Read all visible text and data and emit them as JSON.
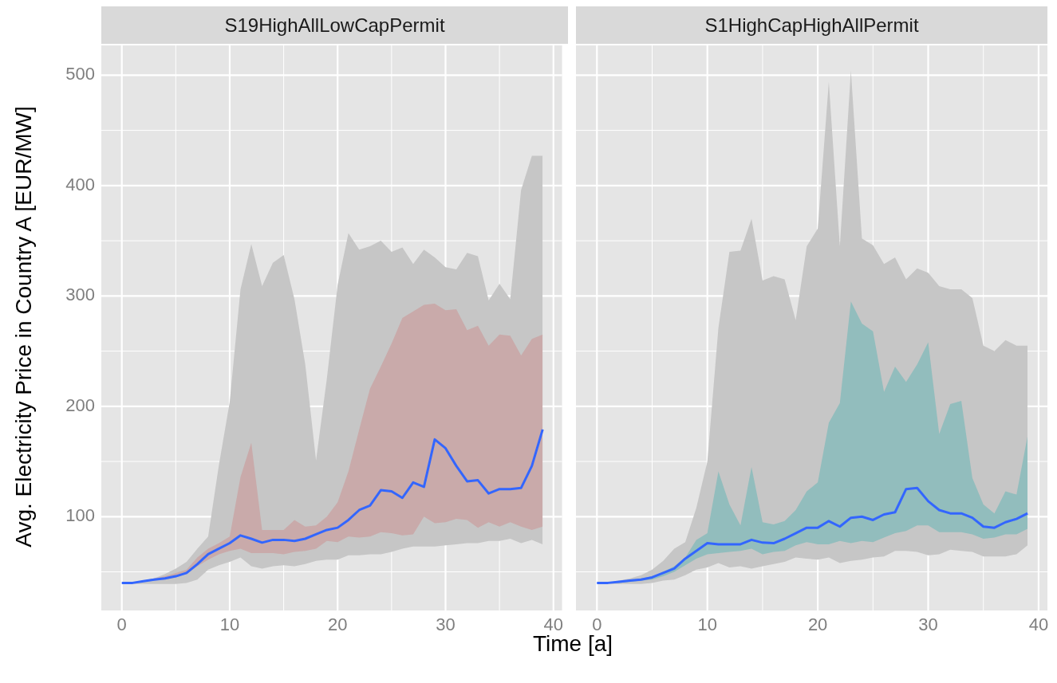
{
  "chart_data": [
    {
      "type": "line",
      "title": "S19HighAllLowCapPermit",
      "ylabel": "Avg. Electricity Price in Country A [EUR/MW]",
      "xlabel": "Time [a]",
      "x": [
        0,
        1,
        2,
        3,
        4,
        5,
        6,
        7,
        8,
        9,
        10,
        11,
        12,
        13,
        14,
        15,
        16,
        17,
        18,
        19,
        20,
        21,
        22,
        23,
        24,
        25,
        26,
        27,
        28,
        29,
        30,
        31,
        32,
        33,
        34,
        35,
        36,
        37,
        38,
        39
      ],
      "xlim": [
        -1.9,
        40.8
      ],
      "xticks": [
        0,
        {
          "value": 5,
          "label": null
        },
        10,
        {
          "value": 15,
          "label": null
        },
        20,
        {
          "value": 25,
          "label": null
        },
        30,
        {
          "value": 35,
          "label": null
        },
        40
      ],
      "ylim": [
        15,
        527
      ],
      "yticks": [
        {
          "value": 50,
          "label": null
        },
        100,
        {
          "value": 150,
          "label": null
        },
        200,
        {
          "value": 250,
          "label": null
        },
        300,
        {
          "value": 350,
          "label": null
        },
        400,
        {
          "value": 450,
          "label": null
        },
        500
      ],
      "grid": true,
      "series": [
        {
          "type": "area",
          "color": "#c6c6c6",
          "values": [
            null,
            null,
            null,
            null,
            null,
            null,
            null,
            null,
            null,
            null,
            null,
            null,
            null,
            null,
            null,
            null,
            null,
            null,
            null,
            null,
            null,
            null,
            null,
            null,
            null,
            null,
            null,
            null,
            null,
            null,
            null,
            null,
            null,
            null,
            null,
            null,
            null,
            null,
            null,
            null
          ],
          "lower": [
            40,
            39,
            39,
            39,
            39,
            39,
            40,
            43,
            52,
            56,
            59,
            63,
            55,
            53,
            55,
            56,
            55,
            57,
            60,
            61,
            61,
            65,
            65,
            66,
            66,
            68,
            71,
            73,
            73,
            73,
            74,
            75,
            76,
            76,
            78,
            78,
            80,
            76,
            79,
            75
          ],
          "upper": [
            40,
            40,
            42,
            44,
            48,
            53,
            59,
            71,
            82,
            147,
            204,
            306,
            347,
            309,
            330,
            337,
            297,
            238,
            151,
            225,
            310,
            357,
            342,
            345,
            350,
            340,
            344,
            329,
            342,
            335,
            326,
            324,
            339,
            336,
            296,
            311,
            297,
            396,
            427,
            427
          ]
        },
        {
          "type": "area",
          "color": "#c9aaaa",
          "values": [
            null,
            null,
            null,
            null,
            null,
            null,
            null,
            null,
            null,
            null,
            null,
            null,
            null,
            null,
            null,
            null,
            null,
            null,
            null,
            null,
            null,
            null,
            null,
            null,
            null,
            null,
            null,
            null,
            null,
            null,
            null,
            null,
            null,
            null,
            null,
            null,
            null,
            null,
            null,
            null
          ],
          "lower": [
            40,
            40,
            41,
            42,
            43,
            45,
            48,
            55,
            61,
            66,
            69,
            71,
            67,
            67,
            67,
            66,
            68,
            69,
            71,
            78,
            77,
            82,
            81,
            82,
            86,
            85,
            83,
            84,
            100,
            94,
            95,
            98,
            97,
            90,
            95,
            91,
            95,
            91,
            88,
            91
          ],
          "upper": [
            40,
            40,
            42,
            44,
            46,
            49,
            52,
            63,
            71,
            76,
            82,
            136,
            167,
            88,
            88,
            88,
            97,
            91,
            92,
            100,
            113,
            141,
            179,
            216,
            236,
            257,
            280,
            286,
            292,
            293,
            287,
            288,
            269,
            273,
            255,
            265,
            264,
            246,
            261,
            265
          ]
        },
        {
          "type": "line",
          "color": "#3366ff",
          "values": [
            40,
            40,
            41.5,
            43,
            44,
            46,
            49,
            57,
            66,
            71,
            76,
            83,
            80,
            76.5,
            79,
            79,
            78,
            80,
            84,
            88,
            90,
            97,
            106,
            110,
            124,
            123,
            117,
            131,
            127,
            170,
            162,
            146,
            132,
            133,
            121,
            125,
            125,
            126,
            146,
            179
          ]
        }
      ]
    },
    {
      "type": "line",
      "title": "S1HighCapHighAllPermit",
      "tick_labels": "x",
      "x": [
        0,
        1,
        2,
        3,
        4,
        5,
        6,
        7,
        8,
        9,
        10,
        11,
        12,
        13,
        14,
        15,
        16,
        17,
        18,
        19,
        20,
        21,
        22,
        23,
        24,
        25,
        26,
        27,
        28,
        29,
        30,
        31,
        32,
        33,
        34,
        35,
        36,
        37,
        38,
        39
      ],
      "xlim": [
        -1.9,
        40.8
      ],
      "xticks": [
        0,
        {
          "value": 5,
          "label": null
        },
        10,
        {
          "value": 15,
          "label": null
        },
        20,
        {
          "value": 25,
          "label": null
        },
        30,
        {
          "value": 35,
          "label": null
        },
        40
      ],
      "ylim": [
        15,
        527
      ],
      "yticks": [
        {
          "value": 50,
          "label": null
        },
        100,
        {
          "value": 150,
          "label": null
        },
        200,
        {
          "value": 250,
          "label": null
        },
        300,
        {
          "value": 350,
          "label": null
        },
        400,
        {
          "value": 450,
          "label": null
        },
        500
      ],
      "grid": true,
      "series": [
        {
          "type": "area",
          "color": "#c6c6c6",
          "values": [
            null,
            null,
            null,
            null,
            null,
            null,
            null,
            null,
            null,
            null,
            null,
            null,
            null,
            null,
            null,
            null,
            null,
            null,
            null,
            null,
            null,
            null,
            null,
            null,
            null,
            null,
            null,
            null,
            null,
            null,
            null,
            null,
            null,
            null,
            null,
            null,
            null,
            null,
            null,
            null
          ],
          "lower": [
            40,
            39,
            39,
            39,
            39,
            40,
            42,
            43,
            47,
            52,
            54,
            58,
            54,
            55,
            53,
            55,
            57,
            59,
            63,
            62,
            61,
            63,
            58,
            60,
            61,
            63,
            64,
            69,
            69,
            68,
            65,
            66,
            70,
            69,
            68,
            64,
            64,
            64,
            66,
            74
          ],
          "upper": [
            40,
            40,
            42,
            44,
            47,
            52,
            60,
            71,
            77,
            108,
            150,
            271,
            340,
            341,
            370,
            314,
            318,
            315,
            278,
            345,
            361,
            494,
            345,
            504,
            352,
            346,
            329,
            335,
            315,
            325,
            321,
            309,
            306,
            306,
            298,
            255,
            250,
            260,
            255,
            255
          ]
        },
        {
          "type": "area",
          "color": "#92bdbd",
          "values": [
            null,
            null,
            null,
            null,
            null,
            null,
            null,
            null,
            null,
            null,
            null,
            null,
            null,
            null,
            null,
            null,
            null,
            null,
            null,
            null,
            null,
            null,
            null,
            null,
            null,
            null,
            null,
            null,
            null,
            null,
            null,
            null,
            null,
            null,
            null,
            null,
            null,
            null,
            null,
            null
          ],
          "lower": [
            40,
            40,
            40,
            41,
            42,
            43,
            46,
            50,
            56,
            62,
            66,
            67,
            68,
            69,
            71,
            66,
            68,
            69,
            74,
            77,
            75,
            75,
            78,
            76,
            78,
            77,
            81,
            85,
            87,
            92,
            92,
            86,
            86,
            86,
            84,
            80,
            81,
            84,
            84,
            89
          ],
          "upper": [
            40,
            40,
            41,
            43,
            44,
            46,
            50,
            55,
            63,
            79,
            85,
            141,
            111,
            92,
            145,
            95,
            93,
            96,
            106,
            123,
            131,
            185,
            203,
            295,
            275,
            268,
            213,
            236,
            222,
            238,
            258,
            175,
            202,
            205,
            135,
            111,
            103,
            123,
            120,
            173
          ]
        },
        {
          "type": "line",
          "color": "#3366ff",
          "values": [
            40,
            40,
            41,
            42,
            43,
            45,
            49,
            53,
            62,
            69,
            76,
            75,
            75,
            75,
            79,
            76.5,
            76,
            80,
            85,
            90,
            90,
            96,
            91,
            99,
            100,
            97,
            102,
            104,
            125,
            126,
            114,
            106,
            103,
            103,
            99,
            91,
            90,
            95,
            98,
            103
          ]
        }
      ]
    }
  ]
}
